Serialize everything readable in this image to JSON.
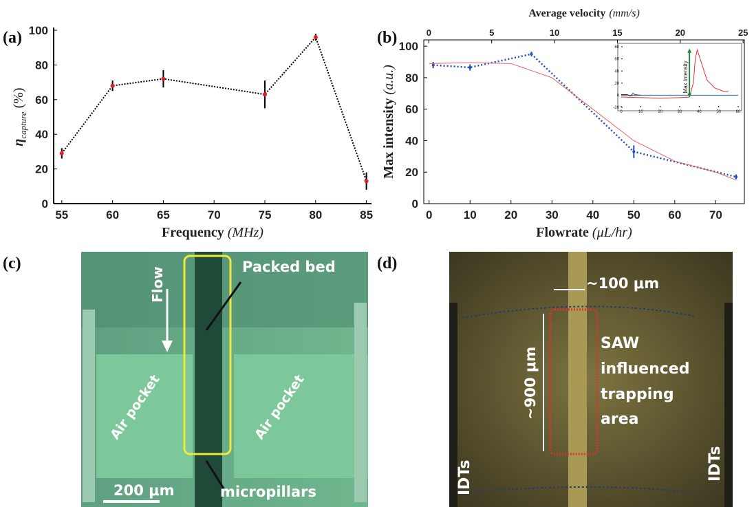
{
  "chart_data": [
    {
      "type": "line",
      "panel": "(a)",
      "x_label": "Frequency",
      "x_label_unit": "(MHz)",
      "y_label": "η",
      "y_label_sub": "capture",
      "y_label_unit": "(%)",
      "xlim": [
        54.2,
        85.5
      ],
      "xticks": [
        55,
        60,
        65,
        70,
        75,
        80,
        85
      ],
      "ylim": [
        0,
        100
      ],
      "yticks": [
        0,
        20,
        40,
        60,
        80,
        100
      ],
      "series": [
        {
          "color": "#000000",
          "marker_color": "#e02020",
          "x": [
            55,
            60,
            65,
            75,
            80,
            85
          ],
          "values": [
            29,
            68,
            72,
            63,
            96,
            13
          ],
          "errors": [
            3,
            3,
            5,
            8,
            2,
            5
          ]
        }
      ]
    },
    {
      "type": "line",
      "panel": "(b)",
      "x_label": "Flowrate",
      "x_label_unit": "(μL/hr)",
      "x2_label": "Average velocity",
      "x2_label_unit": "(mm/s)",
      "y_label": "Max intensity",
      "y_label_unit": "(a.u.)",
      "xlim": [
        -1.3,
        77
      ],
      "xticks": [
        0,
        10,
        20,
        30,
        40,
        50,
        60,
        70
      ],
      "x2lim": [
        -0.4,
        25.1
      ],
      "x2ticks": [
        0,
        5,
        10,
        15,
        20,
        25
      ],
      "ylim": [
        0,
        104
      ],
      "yticks": [
        0,
        20,
        40,
        60,
        80,
        100
      ],
      "series": [
        {
          "color": "#1f4fbf",
          "x": [
            1,
            10,
            25,
            50,
            75
          ],
          "values": [
            88,
            86.5,
            95,
            33,
            17
          ],
          "errors": [
            2,
            2,
            1.5,
            4,
            1.5
          ]
        },
        {
          "color": "#f06060",
          "x": [
            0,
            10,
            20,
            30,
            40,
            50,
            60,
            70,
            75
          ],
          "values": [
            89,
            89.5,
            89,
            80,
            60,
            40,
            27,
            20,
            15
          ]
        }
      ]
    },
    {
      "type": "line",
      "annotation": "Max Intensity",
      "xlim": [
        0,
        60
      ],
      "xticks": [
        0,
        10,
        20,
        30,
        40,
        50,
        60
      ],
      "ylim": [
        -20,
        80
      ],
      "yticks": [
        -20,
        0,
        20,
        40,
        60,
        80
      ],
      "series": [
        {
          "color": "#e03030",
          "x": [
            0,
            10,
            20,
            30,
            35,
            37,
            38,
            39,
            41,
            44,
            48,
            52,
            55
          ],
          "values": [
            -3,
            -4,
            -5,
            -4,
            -3,
            20,
            60,
            75,
            55,
            25,
            12,
            7,
            5
          ]
        },
        {
          "color": "#2060c0",
          "x": [
            0,
            60
          ],
          "values": [
            0,
            0
          ]
        },
        {
          "color": "#333333",
          "x": [
            0,
            3,
            5,
            6,
            7,
            10
          ],
          "values": [
            1,
            1,
            -1,
            3,
            1,
            0
          ]
        }
      ]
    }
  ],
  "images": [
    {
      "panel": "(c)",
      "annotations": [
        "Flow",
        "Packed bed",
        "Air pocket",
        "Air pocket",
        "200 μm",
        "micropillars"
      ]
    },
    {
      "panel": "(d)",
      "annotations": [
        "~100 μm",
        "~900 μm",
        "SAW",
        "influenced",
        "trapping",
        "area",
        "IDTs",
        "IDTs"
      ]
    }
  ]
}
